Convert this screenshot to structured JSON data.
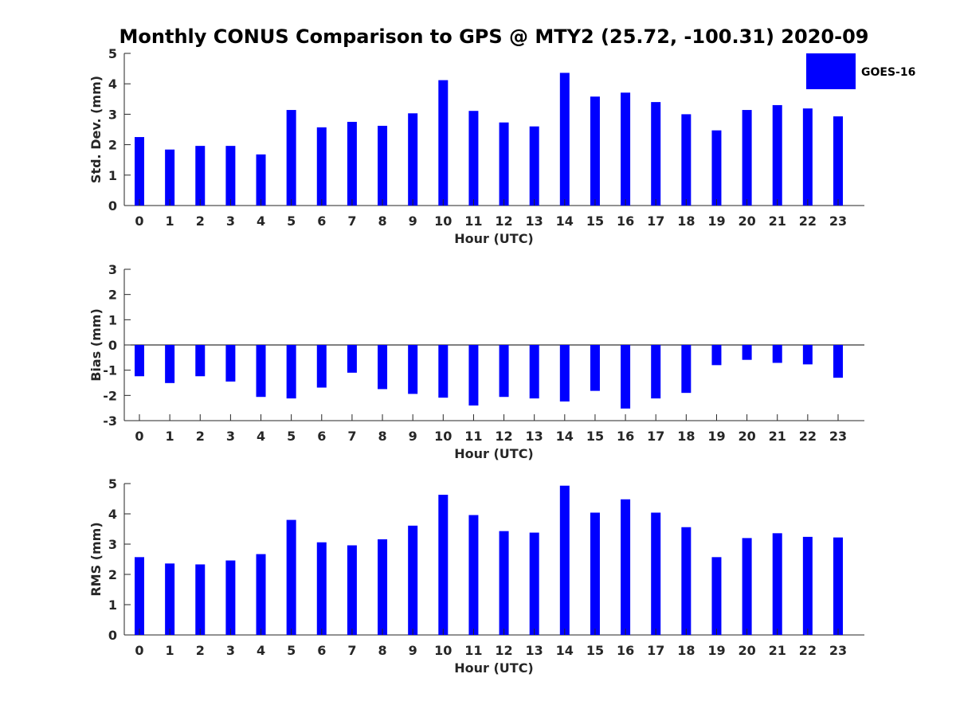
{
  "chart_data": {
    "title": "Monthly CONUS Comparison to GPS @ MTY2 (25.72, -100.31) 2020-09",
    "legend": {
      "label": "GOES-16",
      "color": "#0000ff",
      "placement": "top-right"
    },
    "panels": [
      {
        "type": "bar",
        "name": "std-dev",
        "ylabel": "Std. Dev. (mm)",
        "xlabel": "Hour (UTC)",
        "ylim": [
          0,
          5
        ],
        "yticks": [
          "0",
          "1",
          "2",
          "3",
          "4",
          "5"
        ],
        "categories": [
          "0",
          "1",
          "2",
          "3",
          "4",
          "5",
          "6",
          "7",
          "8",
          "9",
          "10",
          "11",
          "12",
          "13",
          "14",
          "15",
          "16",
          "17",
          "18",
          "19",
          "20",
          "21",
          "22",
          "23"
        ],
        "values": [
          2.25,
          1.84,
          1.96,
          1.96,
          1.68,
          3.14,
          2.57,
          2.75,
          2.62,
          3.03,
          4.12,
          3.11,
          2.73,
          2.6,
          4.36,
          3.58,
          3.71,
          3.4,
          3.0,
          2.47,
          3.14,
          3.3,
          3.19,
          2.93
        ],
        "color": "#0000ff"
      },
      {
        "type": "bar",
        "name": "bias",
        "ylabel": "Bias (mm)",
        "xlabel": "Hour (UTC)",
        "ylim": [
          -3,
          3
        ],
        "yticks": [
          "-3",
          "-2",
          "-1",
          "0",
          "1",
          "2",
          "3"
        ],
        "categories": [
          "0",
          "1",
          "2",
          "3",
          "4",
          "5",
          "6",
          "7",
          "8",
          "9",
          "10",
          "11",
          "12",
          "13",
          "14",
          "15",
          "16",
          "17",
          "18",
          "19",
          "20",
          "21",
          "22",
          "23"
        ],
        "values": [
          -1.24,
          -1.51,
          -1.24,
          -1.45,
          -2.06,
          -2.12,
          -1.69,
          -1.1,
          -1.75,
          -1.94,
          -2.09,
          -2.4,
          -2.06,
          -2.12,
          -2.24,
          -1.82,
          -2.52,
          -2.12,
          -1.9,
          -0.8,
          -0.59,
          -0.71,
          -0.77,
          -1.3
        ],
        "color": "#0000ff"
      },
      {
        "type": "bar",
        "name": "rms",
        "ylabel": "RMS (mm)",
        "xlabel": "Hour (UTC)",
        "ylim": [
          0,
          5
        ],
        "yticks": [
          "0",
          "1",
          "2",
          "3",
          "4",
          "5"
        ],
        "categories": [
          "0",
          "1",
          "2",
          "3",
          "4",
          "5",
          "6",
          "7",
          "8",
          "9",
          "10",
          "11",
          "12",
          "13",
          "14",
          "15",
          "16",
          "17",
          "18",
          "19",
          "20",
          "21",
          "22",
          "23"
        ],
        "values": [
          2.57,
          2.36,
          2.33,
          2.46,
          2.67,
          3.8,
          3.06,
          2.96,
          3.16,
          3.61,
          4.63,
          3.96,
          3.43,
          3.38,
          4.93,
          4.04,
          4.48,
          4.04,
          3.56,
          2.57,
          3.2,
          3.36,
          3.24,
          3.22
        ],
        "color": "#0000ff"
      }
    ]
  }
}
